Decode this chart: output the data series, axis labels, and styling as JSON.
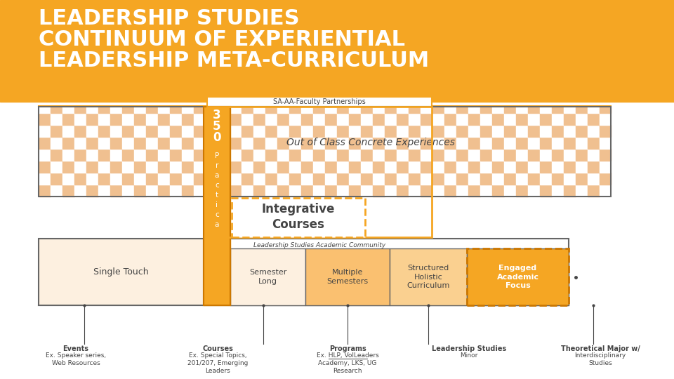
{
  "title_line1": "LEADERSHIP STUDIES",
  "title_line2": "CONTINUUM OF EXPERIENTIAL",
  "title_line3": "LEADERSHIP META-CURRICULUM",
  "title_bg": "#F5A623",
  "title_color": "#FFFFFF",
  "bg_color": "#FFFFFF",
  "orange_main": "#F5A623",
  "orange_dark": "#CC7700",
  "orange_med": "#F0A030",
  "orange_light": "#FAD090",
  "peach_lightest": "#FDF0E0",
  "peach_light": "#FDDCB0",
  "peach_mid": "#FAC070",
  "gray_dark": "#444444",
  "gray_border": "#666666",
  "checker1": "#F0C090",
  "checker2": "#FFFFFF",
  "sa_aa_label": "SA-AA-Faculty Partnerships",
  "out_of_class_label": "Out of Class Concrete Experiences",
  "integrative_label1": "Integrative",
  "integrative_label2": "Courses",
  "ls_ac_label": "Leadership Studies Academic Community",
  "bottom_labels": [
    [
      "Events",
      "Ex. Speaker series,",
      "Web Resources"
    ],
    [
      "Courses",
      "Ex. Special Topics,",
      "201/207, Emerging",
      "Leaders"
    ],
    [
      "Programs",
      "Ex. HLP, VolLeaders",
      "Academy, LKS, UG",
      "Research"
    ],
    [
      "Leadership Studies",
      "Minor"
    ],
    [
      "Theoretical Major w/",
      "Interdisciplinary",
      "Studies"
    ]
  ]
}
